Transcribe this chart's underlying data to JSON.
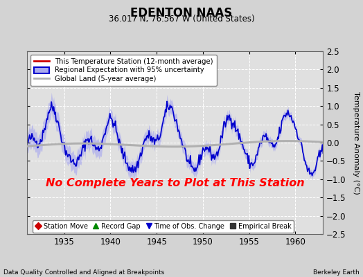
{
  "title": "EDENTON NAAS",
  "subtitle": "36.017 N, 76.567 W (United States)",
  "ylabel": "Temperature Anomaly (°C)",
  "xlabel_left": "Data Quality Controlled and Aligned at Breakpoints",
  "xlabel_right": "Berkeley Earth",
  "annotation": "No Complete Years to Plot at This Station",
  "ylim": [
    -2.5,
    2.5
  ],
  "xlim": [
    1931,
    1963
  ],
  "xticks": [
    1935,
    1940,
    1945,
    1950,
    1955,
    1960
  ],
  "yticks": [
    -2.5,
    -2,
    -1.5,
    -1,
    -0.5,
    0,
    0.5,
    1,
    1.5,
    2,
    2.5
  ],
  "bg_color": "#d3d3d3",
  "plot_bg_color": "#e0e0e0",
  "grid_color": "#ffffff",
  "regional_color": "#0000cc",
  "regional_fill": "#aaaaee",
  "station_color": "#cc0000",
  "global_color": "#b0b0b0",
  "legend1_items": [
    {
      "label": "This Temperature Station (12-month average)",
      "color": "#cc0000",
      "lw": 2
    },
    {
      "label": "Regional Expectation with 95% uncertainty",
      "color": "#0000cc",
      "lw": 2,
      "fill": "#aaaaee"
    },
    {
      "label": "Global Land (5-year average)",
      "color": "#b0b0b0",
      "lw": 2
    }
  ],
  "legend2_items": [
    {
      "label": "Station Move",
      "marker": "D",
      "color": "#cc0000"
    },
    {
      "label": "Record Gap",
      "marker": "^",
      "color": "#008800"
    },
    {
      "label": "Time of Obs. Change",
      "marker": "v",
      "color": "#0000cc"
    },
    {
      "label": "Empirical Break",
      "marker": "s",
      "color": "#333333"
    }
  ],
  "seed": 42,
  "n_points": 380
}
